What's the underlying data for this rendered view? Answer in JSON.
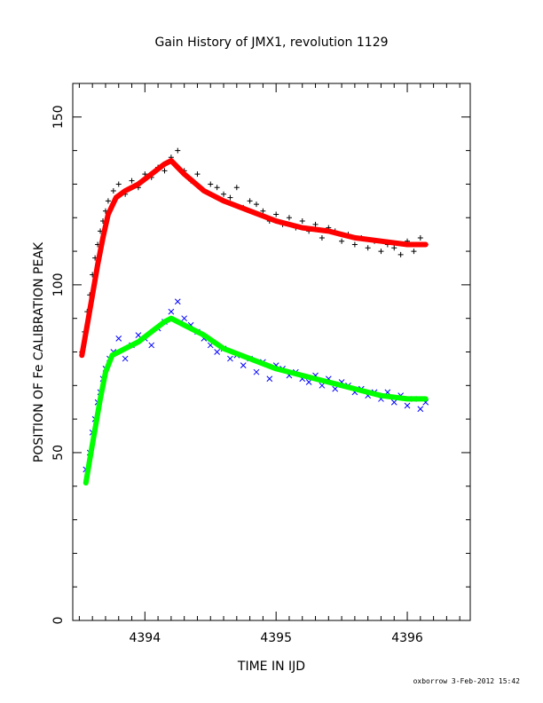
{
  "chart_data": {
    "type": "scatter",
    "title": "Gain History of JMX1, revolution 1129",
    "xlabel": "TIME IN IJD",
    "ylabel": "POSITION OF Fe CALIBRATION PEAK",
    "xlim": [
      4393.45,
      4396.48
    ],
    "ylim": [
      0,
      160
    ],
    "xticks": [
      4394,
      4395,
      4396
    ],
    "yticks": [
      0,
      50,
      100,
      150
    ],
    "grid": false,
    "footer": "oxborrow  3-Feb-2012 15:42",
    "series": [
      {
        "marker": "plus",
        "color": "#000000",
        "x": [
          4393.52,
          4393.54,
          4393.56,
          4393.58,
          4393.6,
          4393.62,
          4393.64,
          4393.66,
          4393.68,
          4393.7,
          4393.72,
          4393.76,
          4393.8,
          4393.85,
          4393.9,
          4393.95,
          4394.0,
          4394.05,
          4394.1,
          4394.15,
          4394.2,
          4394.25,
          4394.3,
          4394.35,
          4394.4,
          4394.45,
          4394.5,
          4394.55,
          4394.6,
          4394.65,
          4394.7,
          4394.75,
          4394.8,
          4394.85,
          4394.9,
          4394.95,
          4395.0,
          4395.05,
          4395.1,
          4395.15,
          4395.2,
          4395.25,
          4395.3,
          4395.35,
          4395.4,
          4395.45,
          4395.5,
          4395.55,
          4395.6,
          4395.65,
          4395.7,
          4395.75,
          4395.8,
          4395.85,
          4395.9,
          4395.95,
          4396.0,
          4396.05,
          4396.1,
          4396.14
        ],
        "y": [
          80,
          86,
          92,
          97,
          103,
          108,
          112,
          116,
          119,
          122,
          125,
          128,
          130,
          127,
          131,
          129,
          133,
          132,
          135,
          134,
          138,
          140,
          134,
          131,
          133,
          128,
          130,
          129,
          127,
          126,
          129,
          123,
          125,
          124,
          122,
          119,
          121,
          118,
          120,
          117,
          119,
          116,
          118,
          114,
          117,
          116,
          113,
          115,
          112,
          114,
          111,
          113,
          110,
          112,
          111,
          109,
          113,
          110,
          114,
          112
        ]
      },
      {
        "marker": "x",
        "color": "#0000ff",
        "x": [
          4393.55,
          4393.58,
          4393.6,
          4393.62,
          4393.64,
          4393.66,
          4393.68,
          4393.7,
          4393.73,
          4393.76,
          4393.8,
          4393.85,
          4393.9,
          4393.95,
          4394.0,
          4394.05,
          4394.1,
          4394.15,
          4394.2,
          4394.25,
          4394.3,
          4394.35,
          4394.4,
          4394.45,
          4394.5,
          4394.55,
          4394.6,
          4394.65,
          4394.7,
          4394.75,
          4394.8,
          4394.85,
          4394.9,
          4394.95,
          4395.0,
          4395.05,
          4395.1,
          4395.15,
          4395.2,
          4395.25,
          4395.3,
          4395.35,
          4395.4,
          4395.45,
          4395.5,
          4395.55,
          4395.6,
          4395.65,
          4395.7,
          4395.75,
          4395.8,
          4395.85,
          4395.9,
          4395.95,
          4396.0,
          4396.05,
          4396.1,
          4396.14
        ],
        "y": [
          45,
          50,
          56,
          60,
          65,
          68,
          72,
          75,
          78,
          80,
          84,
          78,
          82,
          85,
          84,
          82,
          87,
          89,
          92,
          95,
          90,
          88,
          86,
          84,
          82,
          80,
          81,
          78,
          79,
          76,
          78,
          74,
          77,
          72,
          76,
          75,
          73,
          74,
          72,
          71,
          73,
          70,
          72,
          69,
          71,
          70,
          68,
          69,
          67,
          68,
          66,
          68,
          65,
          67,
          64,
          66,
          63,
          65
        ]
      },
      {
        "marker": "line",
        "color": "#ff0000",
        "x": [
          4393.52,
          4393.56,
          4393.6,
          4393.64,
          4393.68,
          4393.72,
          4393.78,
          4393.85,
          4393.95,
          4394.05,
          4394.15,
          4394.2,
          4394.3,
          4394.45,
          4394.6,
          4394.8,
          4395.0,
          4395.2,
          4395.4,
          4395.6,
          4395.8,
          4396.0,
          4396.14
        ],
        "y": [
          79,
          88,
          97,
          106,
          114,
          121,
          126,
          128,
          130,
          133,
          136,
          137,
          133,
          128,
          125,
          122,
          119,
          117,
          116,
          114,
          113,
          112,
          112
        ]
      },
      {
        "marker": "line",
        "color": "#00ff00",
        "x": [
          4393.55,
          4393.58,
          4393.62,
          4393.66,
          4393.7,
          4393.75,
          4393.85,
          4393.95,
          4394.05,
          4394.15,
          4394.2,
          4394.3,
          4394.45,
          4394.6,
          4394.8,
          4395.0,
          4395.2,
          4395.4,
          4395.6,
          4395.8,
          4396.0,
          4396.14
        ],
        "y": [
          41,
          48,
          57,
          66,
          74,
          79,
          81,
          83,
          86,
          89,
          90,
          88,
          85,
          81,
          78,
          75,
          73,
          71,
          69,
          67,
          66,
          66
        ]
      }
    ]
  }
}
